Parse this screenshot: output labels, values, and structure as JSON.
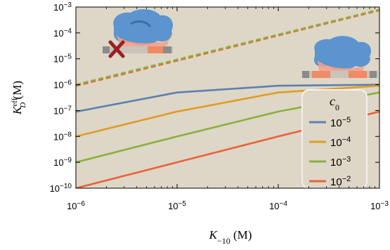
{
  "chart_data": {
    "type": "line",
    "xlabel_main": "K",
    "xlabel_sub": "−10",
    "xlabel_unit": " (M)",
    "ylabel_main": "K",
    "ylabel_sup": "eff",
    "ylabel_sub": "D",
    "ylabel_unit": " (M)",
    "x_scale": "log",
    "y_scale": "log",
    "xlim": [
      1e-06,
      0.001
    ],
    "ylim": [
      1e-10,
      0.001
    ],
    "x_ticks": [
      {
        "value": 1e-06,
        "base": "10",
        "exp": "−6"
      },
      {
        "value": 1e-05,
        "base": "10",
        "exp": "−5"
      },
      {
        "value": 0.0001,
        "base": "10",
        "exp": "−4"
      },
      {
        "value": 0.001,
        "base": "10",
        "exp": "−3"
      }
    ],
    "y_ticks": [
      {
        "value": 0.001,
        "base": "10",
        "exp": "−3"
      },
      {
        "value": 0.0001,
        "base": "10",
        "exp": "−4"
      },
      {
        "value": 1e-05,
        "base": "10",
        "exp": "−5"
      },
      {
        "value": 1e-06,
        "base": "10",
        "exp": "−6"
      },
      {
        "value": 1e-07,
        "base": "10",
        "exp": "−7"
      },
      {
        "value": 1e-08,
        "base": "10",
        "exp": "−8"
      },
      {
        "value": 1e-09,
        "base": "10",
        "exp": "−9"
      },
      {
        "value": 1e-10,
        "base": "10",
        "exp": "−10"
      }
    ],
    "legend_title": "c",
    "legend_title_sub": "0",
    "legend_position": "right",
    "background_color": "#ded6c6",
    "series": [
      {
        "name": "10−5",
        "base": "10",
        "exp": "−5",
        "color": "#5b80b2",
        "style": "solid",
        "x": [
          1e-06,
          1e-05,
          0.0001,
          0.001
        ],
        "y": [
          9e-08,
          5e-07,
          9.1e-07,
          1e-06
        ]
      },
      {
        "name": "10−4",
        "base": "10",
        "exp": "−4",
        "color": "#e19c24",
        "style": "solid",
        "x": [
          1e-06,
          1e-05,
          0.0001,
          0.001
        ],
        "y": [
          1e-08,
          9.1e-08,
          5e-07,
          9.1e-07
        ]
      },
      {
        "name": "10−3",
        "base": "10",
        "exp": "−3",
        "color": "#8ab03f",
        "style": "solid",
        "x": [
          1e-06,
          1e-05,
          0.0001,
          0.001
        ],
        "y": [
          1e-09,
          1e-08,
          9.1e-08,
          5e-07
        ]
      },
      {
        "name": "10−2",
        "base": "10",
        "exp": "−2",
        "color": "#e8633a",
        "style": "solid",
        "x": [
          1e-06,
          1e-05,
          0.0001,
          0.001
        ],
        "y": [
          1e-10,
          1e-09,
          1e-08,
          9.1e-08
        ]
      },
      {
        "color": "#e8633a",
        "style": "dashed",
        "x": [
          1e-06,
          0.001
        ],
        "y": [
          9e-07,
          0.00075
        ]
      },
      {
        "color": "#8ab03f",
        "style": "dashed",
        "x": [
          1e-06,
          0.001
        ],
        "y": [
          1e-06,
          0.0008
        ]
      }
    ]
  }
}
